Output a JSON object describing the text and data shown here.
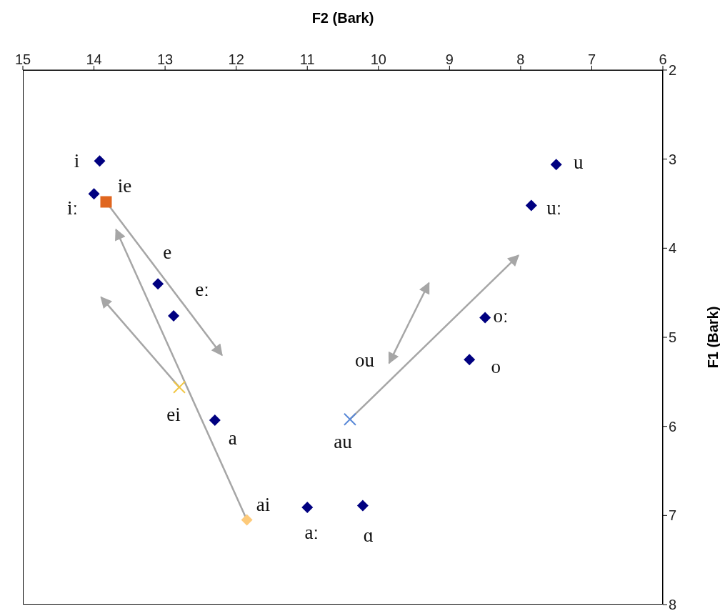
{
  "chart_data": {
    "type": "scatter",
    "xlabel": "F2 (Bark)",
    "ylabel": "F1 (Bark)",
    "xlim": [
      15,
      6
    ],
    "xticks": [
      15,
      14,
      13,
      12,
      11,
      10,
      9,
      8,
      7,
      6
    ],
    "ylim": [
      8,
      2
    ],
    "yticks": [
      2,
      3,
      4,
      5,
      6,
      7,
      8
    ],
    "series": [
      {
        "name": "i",
        "color": "#000080",
        "marker": "diamond",
        "x": [
          13.92
        ],
        "values": [
          3.02
        ]
      },
      {
        "name": "iː",
        "color": "#000080",
        "marker": "diamond",
        "x": [
          14.0
        ],
        "values": [
          3.39
        ]
      },
      {
        "name": "ie",
        "color": "#e0661f",
        "marker": "square",
        "x": [
          13.83
        ],
        "values": [
          3.48
        ]
      },
      {
        "name": "e",
        "color": "#000080",
        "marker": "diamond",
        "x": [
          13.1
        ],
        "values": [
          4.4
        ]
      },
      {
        "name": "eː",
        "color": "#000080",
        "marker": "diamond",
        "x": [
          12.88
        ],
        "values": [
          4.76
        ]
      },
      {
        "name": "ei",
        "color": "#f2c744",
        "marker": "cross",
        "x": [
          12.8
        ],
        "values": [
          5.56
        ]
      },
      {
        "name": "a",
        "color": "#000080",
        "marker": "diamond",
        "x": [
          12.3
        ],
        "values": [
          5.93
        ]
      },
      {
        "name": "ai",
        "color": "#fdca7a",
        "marker": "diamond",
        "x": [
          11.85
        ],
        "values": [
          7.05
        ]
      },
      {
        "name": "aː",
        "color": "#000080",
        "marker": "diamond",
        "x": [
          11.0
        ],
        "values": [
          6.91
        ]
      },
      {
        "name": "ɑ",
        "color": "#000080",
        "marker": "diamond",
        "x": [
          10.22
        ],
        "values": [
          6.89
        ]
      },
      {
        "name": "au",
        "color": "#5b8ad8",
        "marker": "cross",
        "x": [
          10.4
        ],
        "values": [
          5.92
        ]
      },
      {
        "name": "o",
        "color": "#000080",
        "marker": "diamond",
        "x": [
          8.72
        ],
        "values": [
          5.25
        ]
      },
      {
        "name": "oː",
        "color": "#000080",
        "marker": "diamond",
        "x": [
          8.5
        ],
        "values": [
          4.78
        ]
      },
      {
        "name": "uː",
        "color": "#000080",
        "marker": "diamond",
        "x": [
          7.85
        ],
        "values": [
          3.52
        ]
      },
      {
        "name": "u",
        "color": "#000080",
        "marker": "diamond",
        "x": [
          7.5
        ],
        "values": [
          3.06
        ]
      },
      {
        "type": "line",
        "color": "#a6a6a6",
        "x": [
          13.83,
          12.2
        ],
        "values": [
          3.48,
          5.2
        ]
      },
      {
        "type": "line",
        "color": "#a6a6a6",
        "x": [
          11.85,
          13.69
        ],
        "values": [
          7.05,
          3.79
        ]
      },
      {
        "type": "line",
        "color": "#a6a6a6",
        "x": [
          12.8,
          13.9
        ],
        "values": [
          5.56,
          4.55
        ]
      },
      {
        "type": "line",
        "color": "#a6a6a6",
        "x": [
          10.4,
          8.03
        ],
        "values": [
          5.92,
          4.08
        ]
      },
      {
        "type": "line",
        "name": "ou",
        "color": "#a6a6a6",
        "x": [
          9.57,
          9.85
        ],
        "values": [
          4.84,
          5.29
        ]
      },
      {
        "type": "line",
        "color": "#a6a6a6",
        "x": [
          9.57,
          9.29
        ],
        "values": [
          4.84,
          4.39
        ]
      }
    ]
  }
}
